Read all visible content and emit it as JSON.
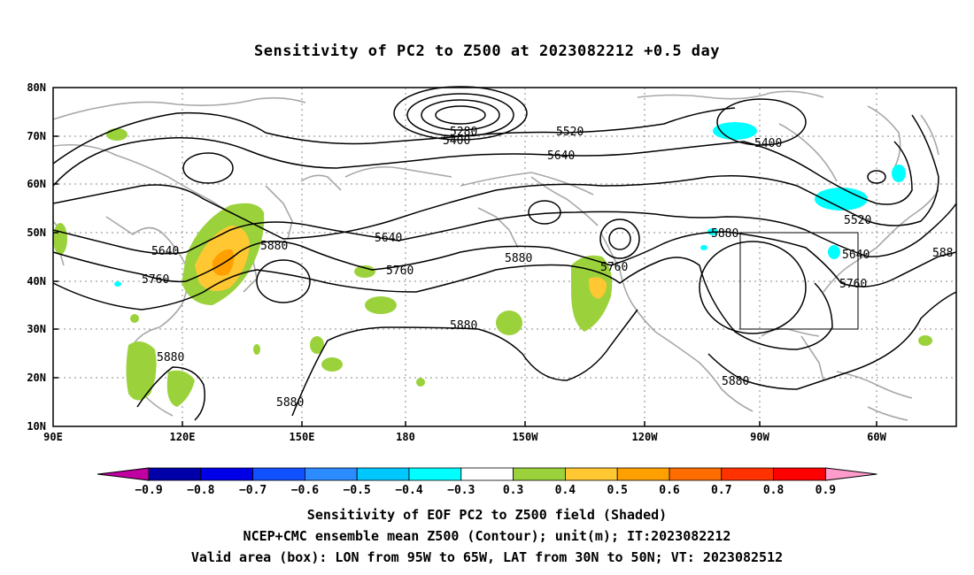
{
  "title": "Sensitivity of PC2 to Z500 at 2023082212 +0.5 day",
  "lat_labels": [
    "80N",
    "70N",
    "60N",
    "50N",
    "40N",
    "30N",
    "20N",
    "10N"
  ],
  "lon_labels": [
    "90E",
    "120E",
    "150E",
    "180",
    "150W",
    "120W",
    "90W",
    "60W"
  ],
  "contour_labels": {
    "c5280": "5280",
    "c5400a": "5400",
    "c5520a": "5520",
    "c5640a": "5640",
    "c5400b": "5400",
    "c5520b": "5520",
    "c5640b": "5640",
    "c5640c": "5640",
    "c5760a": "5760",
    "c5760b": "5760",
    "c5760c": "5760",
    "c5760d": "5760",
    "c5880a": "5880",
    "c5880b": "5880",
    "c5880c": "5880",
    "c5880d": "5880",
    "c5880e": "5880",
    "c5880f": "5880",
    "c5880g": "5880",
    "c58edge": "588"
  },
  "colorbar": {
    "labels": [
      "−0.9",
      "−0.8",
      "−0.7",
      "−0.6",
      "−0.5",
      "−0.4",
      "−0.3",
      "0.3",
      "0.4",
      "0.5",
      "0.6",
      "0.7",
      "0.8",
      "0.9"
    ],
    "colors": [
      "#c000a0",
      "#0000a8",
      "#0000e8",
      "#1050ff",
      "#2c8cff",
      "#00c8ff",
      "#00ffff",
      "#ffffff",
      "#9bd23c",
      "#ffc832",
      "#ffa000",
      "#ff6c00",
      "#ff3200",
      "#ff0000",
      "#ff9ccc"
    ]
  },
  "captions": {
    "line1": "Sensitivity of EOF PC2 to Z500 field (Shaded)",
    "line2": "NCEP+CMC ensemble mean Z500 (Contour); unit(m); IT:2023082212",
    "line3": "Valid area (box): LON from 95W to 65W, LAT from 30N to 50N; VT: 2023082512"
  }
}
